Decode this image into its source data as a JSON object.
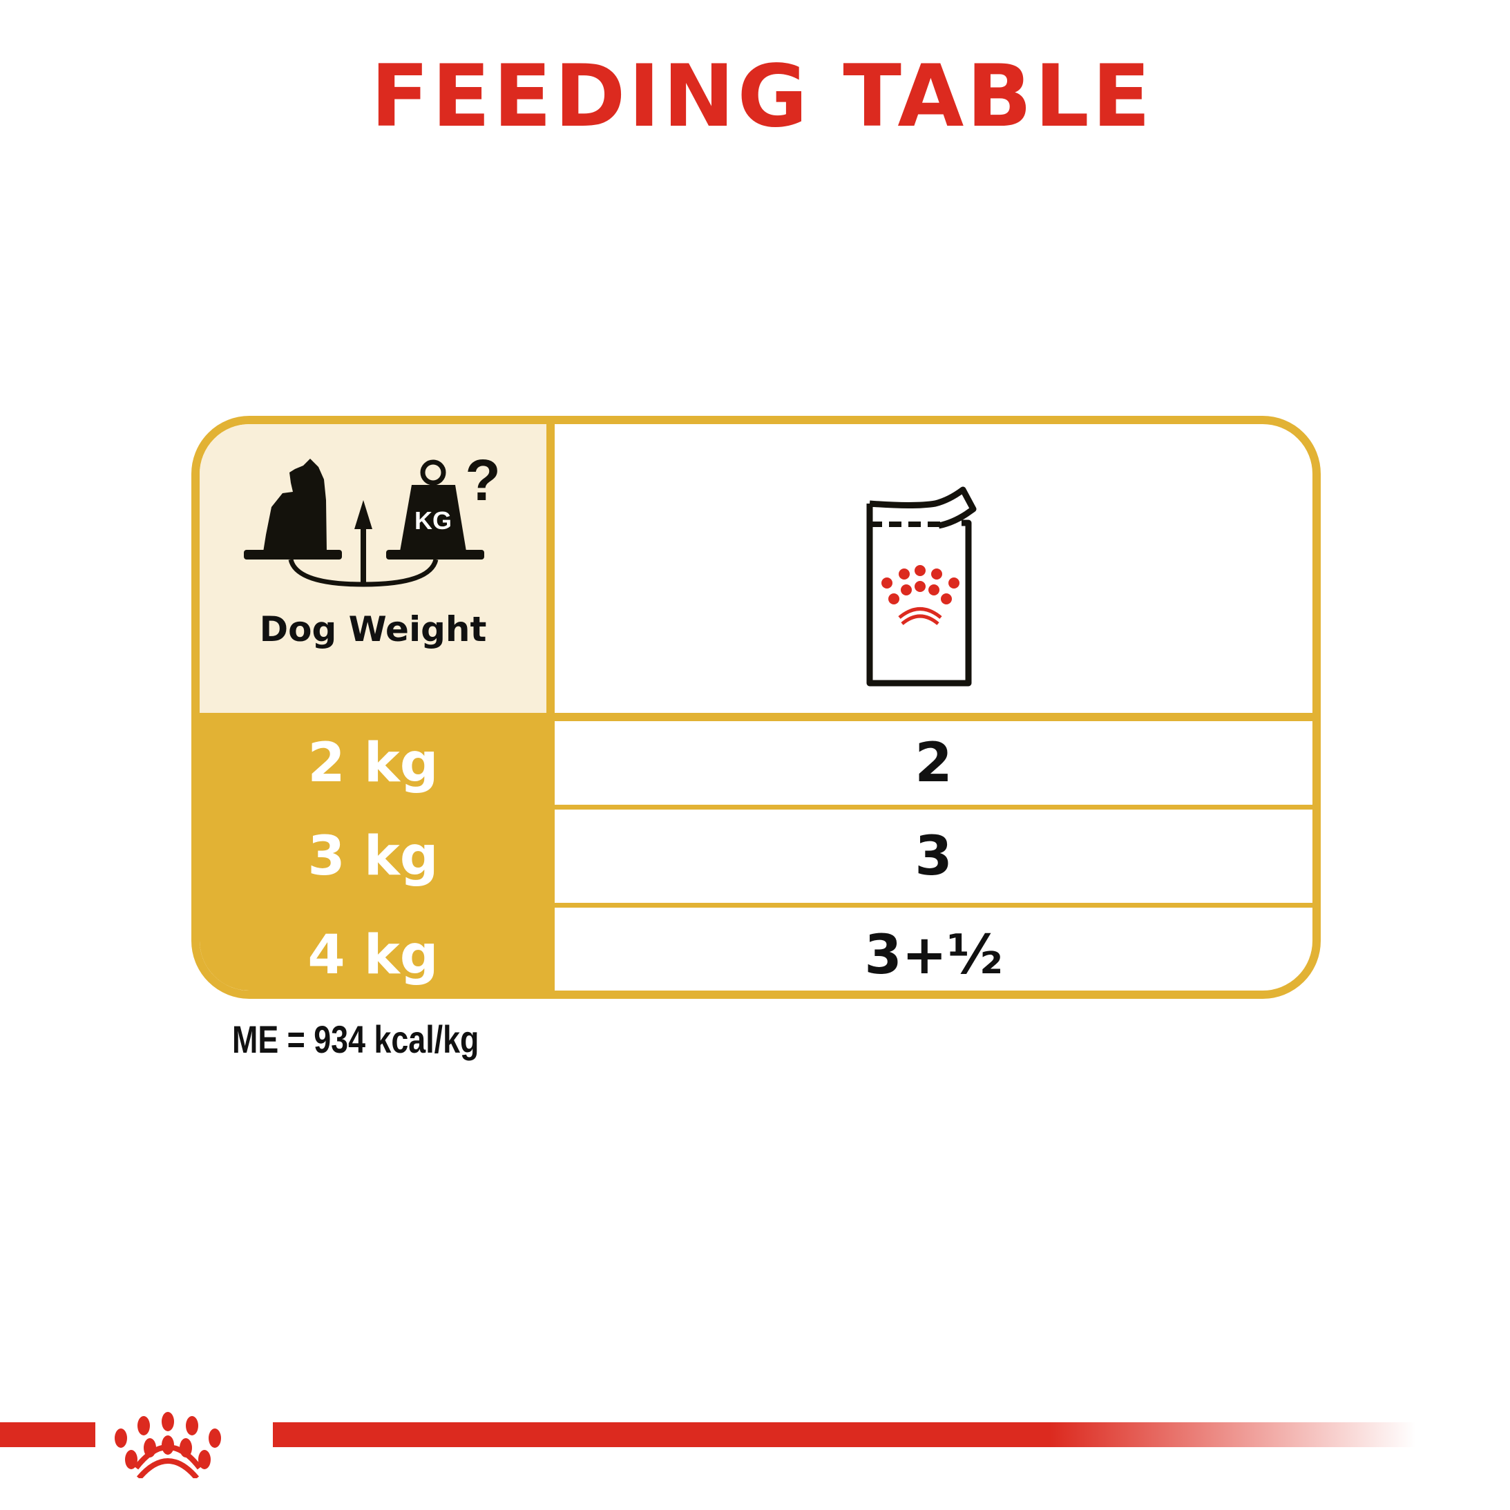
{
  "title": "FEEDING TABLE",
  "table": {
    "header": {
      "left_label": "Dog Weight",
      "left_icon": "dog-weight-scale-icon",
      "weight_badge": "KG",
      "question_mark": "?",
      "right_icon": "wet-food-pouch-icon"
    },
    "rows": [
      {
        "weight": "2 kg",
        "pouches": "2"
      },
      {
        "weight": "3 kg",
        "pouches": "3"
      },
      {
        "weight": "4 kg",
        "pouches": "3+½"
      }
    ]
  },
  "footnote": "ME = 934 kcal/kg",
  "colors": {
    "brand_red": "#dc2a1f",
    "gold": "#e2b234",
    "cream": "#f9efd9"
  },
  "logo": "royal-canin-crown-logo"
}
